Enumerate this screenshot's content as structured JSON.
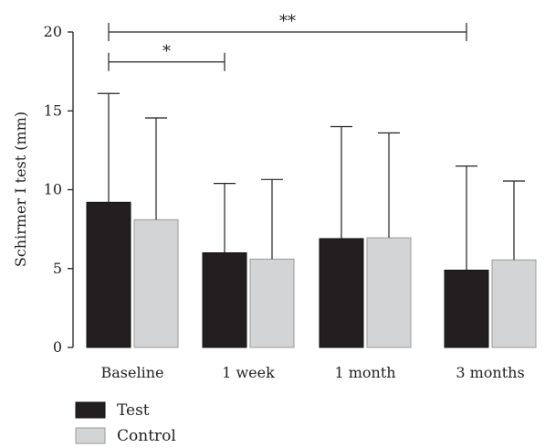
{
  "chart_data": {
    "type": "bar",
    "ylabel": "Schirmer I test (mm)",
    "xlabel": "",
    "ylim": [
      0,
      20
    ],
    "yticks": [
      0,
      5,
      10,
      15,
      20
    ],
    "categories": [
      "Baseline",
      "1 week",
      "1 month",
      "3 months"
    ],
    "series": [
      {
        "name": "Test",
        "color": "#231f20",
        "values": [
          9.2,
          6.0,
          6.9,
          4.9
        ],
        "error_upper": [
          16.1,
          10.4,
          14.0,
          11.5
        ]
      },
      {
        "name": "Control",
        "color": "#d3d4d6",
        "values": [
          8.1,
          5.6,
          6.95,
          5.55
        ],
        "error_upper": [
          14.55,
          10.65,
          13.6,
          10.55
        ]
      }
    ],
    "significance": [
      {
        "from_category": 0,
        "to_category": 1,
        "label": "*",
        "y": 18.1
      },
      {
        "from_category": 0,
        "to_category": 3,
        "label": "**",
        "y": 20.0
      }
    ],
    "legend_position": "bottom-left",
    "grid": false
  }
}
